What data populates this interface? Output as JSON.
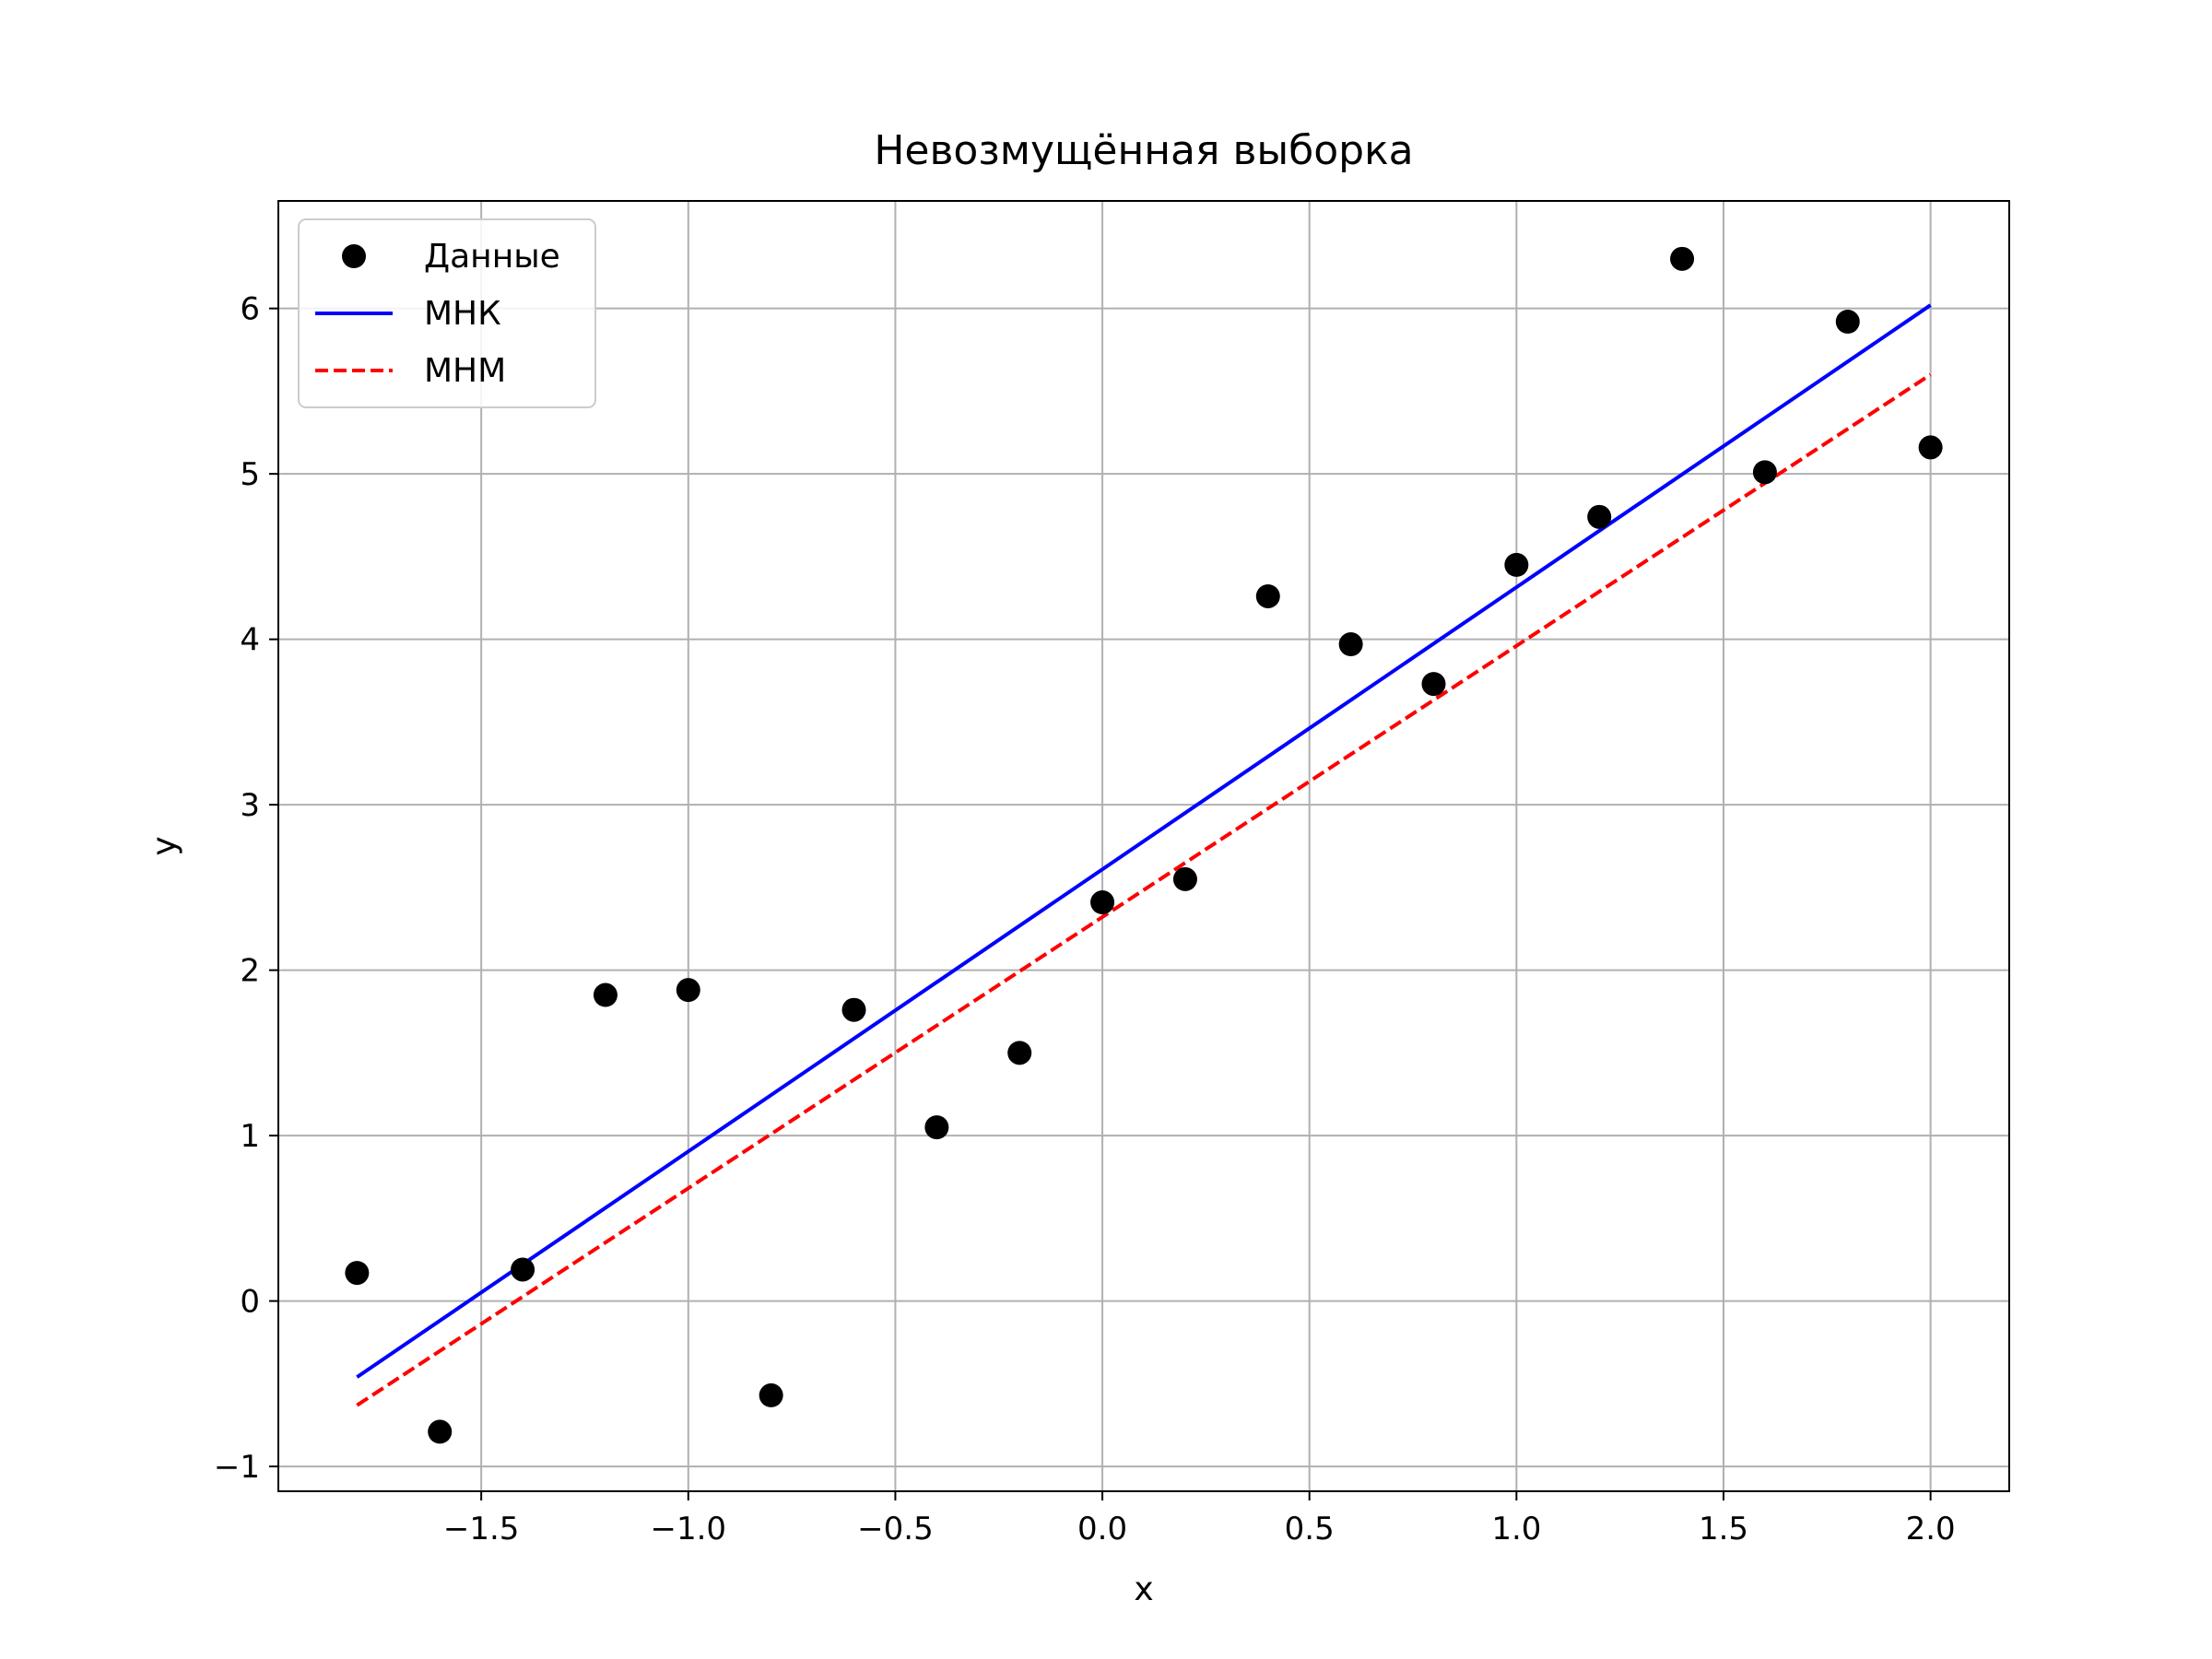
{
  "chart_data": {
    "type": "scatter",
    "title": "Невозмущённая выборка",
    "xlabel": "x",
    "ylabel": "y",
    "xlim": [
      -1.99,
      2.19
    ],
    "ylim": [
      -1.15,
      6.65
    ],
    "grid": true,
    "legend_position": "top-left",
    "x_ticks": [
      -1.5,
      -1.0,
      -0.5,
      0.0,
      0.5,
      1.0,
      1.5,
      2.0
    ],
    "x_tick_labels": [
      "−1.5",
      "−1.0",
      "−0.5",
      "0.0",
      "0.5",
      "1.0",
      "1.5",
      "2.0"
    ],
    "y_ticks": [
      -1,
      0,
      1,
      2,
      3,
      4,
      5,
      6
    ],
    "y_tick_labels": [
      "−1",
      "0",
      "1",
      "2",
      "3",
      "4",
      "5",
      "6"
    ],
    "series": [
      {
        "name": "Данные",
        "kind": "scatter",
        "color": "#000000",
        "x": [
          -1.8,
          -1.6,
          -1.4,
          -1.2,
          -1.0,
          -0.8,
          -0.6,
          -0.4,
          -0.2,
          0.0,
          0.2,
          0.4,
          0.6,
          0.8,
          1.0,
          1.2,
          1.4,
          1.6,
          1.8,
          2.0
        ],
        "y": [
          0.17,
          -0.79,
          0.19,
          1.85,
          1.88,
          -0.57,
          1.76,
          1.05,
          1.5,
          2.41,
          2.55,
          4.26,
          3.97,
          3.73,
          4.45,
          4.74,
          6.3,
          5.01,
          5.92,
          5.16
        ]
      },
      {
        "name": "МНК",
        "kind": "line",
        "style": "solid",
        "color": "#0000ff",
        "x": [
          -1.8,
          2.0
        ],
        "y": [
          -0.46,
          6.02
        ]
      },
      {
        "name": "МНМ",
        "kind": "line",
        "style": "dashed",
        "color": "#ff0000",
        "x": [
          -1.8,
          2.0
        ],
        "y": [
          -0.63,
          5.6
        ]
      }
    ]
  }
}
